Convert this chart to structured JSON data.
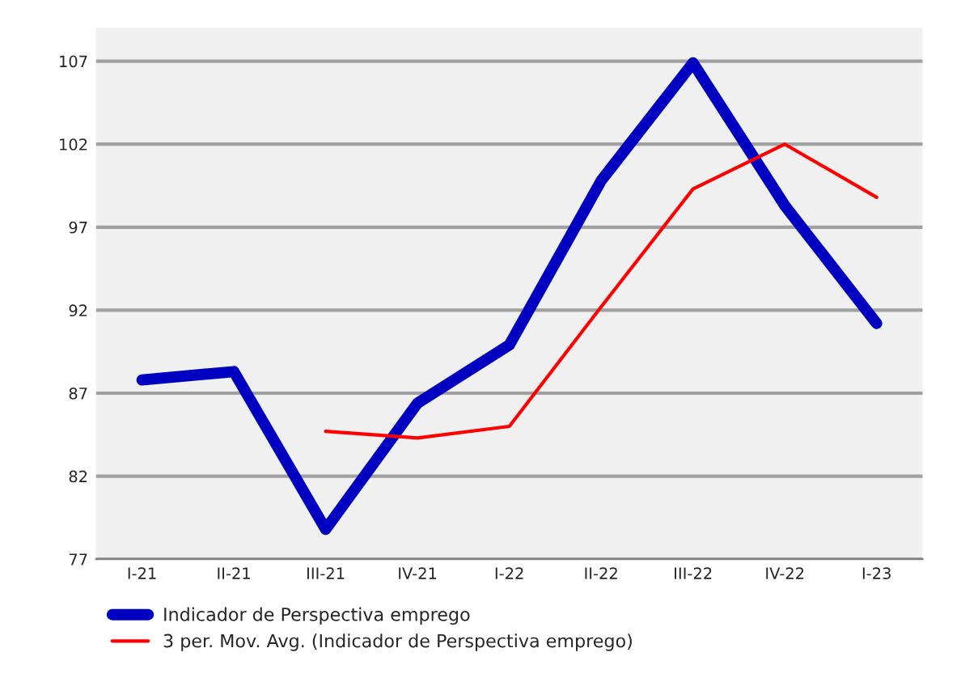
{
  "chart_data": {
    "type": "line",
    "categories": [
      "I-21",
      "II-21",
      "III-21",
      "IV-21",
      "I-22",
      "II-22",
      "III-22",
      "IV-22",
      "I-23"
    ],
    "series": [
      {
        "name": "Indicador de Perspectiva emprego",
        "color": "#0000c0",
        "values": [
          87.8,
          88.3,
          78.8,
          86.4,
          89.9,
          99.8,
          106.9,
          98.3,
          91.2
        ]
      },
      {
        "name": "3 per. Mov. Avg. (Indicador de Perspectiva emprego)",
        "color": "#ff0000",
        "values": [
          null,
          null,
          84.7,
          84.3,
          85.0,
          92.2,
          99.3,
          102.0,
          98.8
        ]
      }
    ],
    "ylim": [
      77,
      109
    ],
    "yticks": [
      77,
      82,
      87,
      92,
      97,
      102,
      107
    ],
    "grid": "y",
    "legend": "bottom"
  }
}
